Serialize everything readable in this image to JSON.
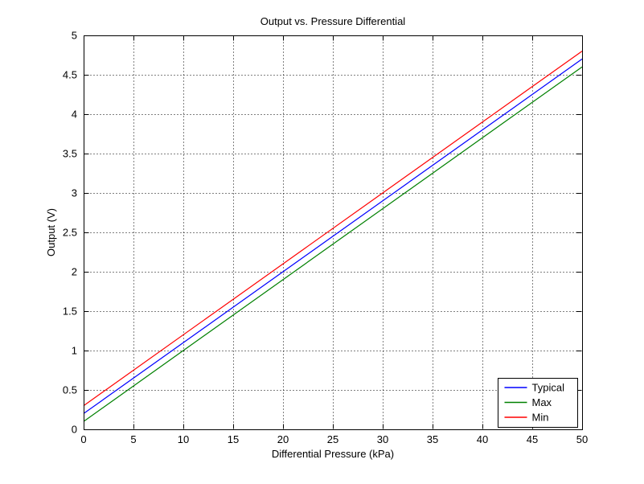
{
  "figure": {
    "background_color": "#ffffff",
    "axes_border_color": "#000000",
    "grid_color": "#000000"
  },
  "chart_data": {
    "type": "line",
    "title": "Output vs. Pressure Differential",
    "xlabel": "Differential Pressure (kPa)",
    "ylabel": "Output (V)",
    "xlim": [
      0,
      50
    ],
    "ylim": [
      0,
      5
    ],
    "x_ticks": [
      0,
      5,
      10,
      15,
      20,
      25,
      30,
      35,
      40,
      45,
      50
    ],
    "y_ticks": [
      0,
      0.5,
      1,
      1.5,
      2,
      2.5,
      3,
      3.5,
      4,
      4.5,
      5
    ],
    "grid": true,
    "grid_style": "dotted",
    "legend_position": "lower right",
    "x": [
      0,
      50
    ],
    "series": [
      {
        "name": "Typical",
        "color": "#0000ff",
        "values": [
          0.2,
          4.7
        ]
      },
      {
        "name": "Max",
        "color": "#008000",
        "values": [
          0.1,
          4.6
        ]
      },
      {
        "name": "Min",
        "color": "#ff0000",
        "values": [
          0.3,
          4.8
        ]
      }
    ]
  }
}
